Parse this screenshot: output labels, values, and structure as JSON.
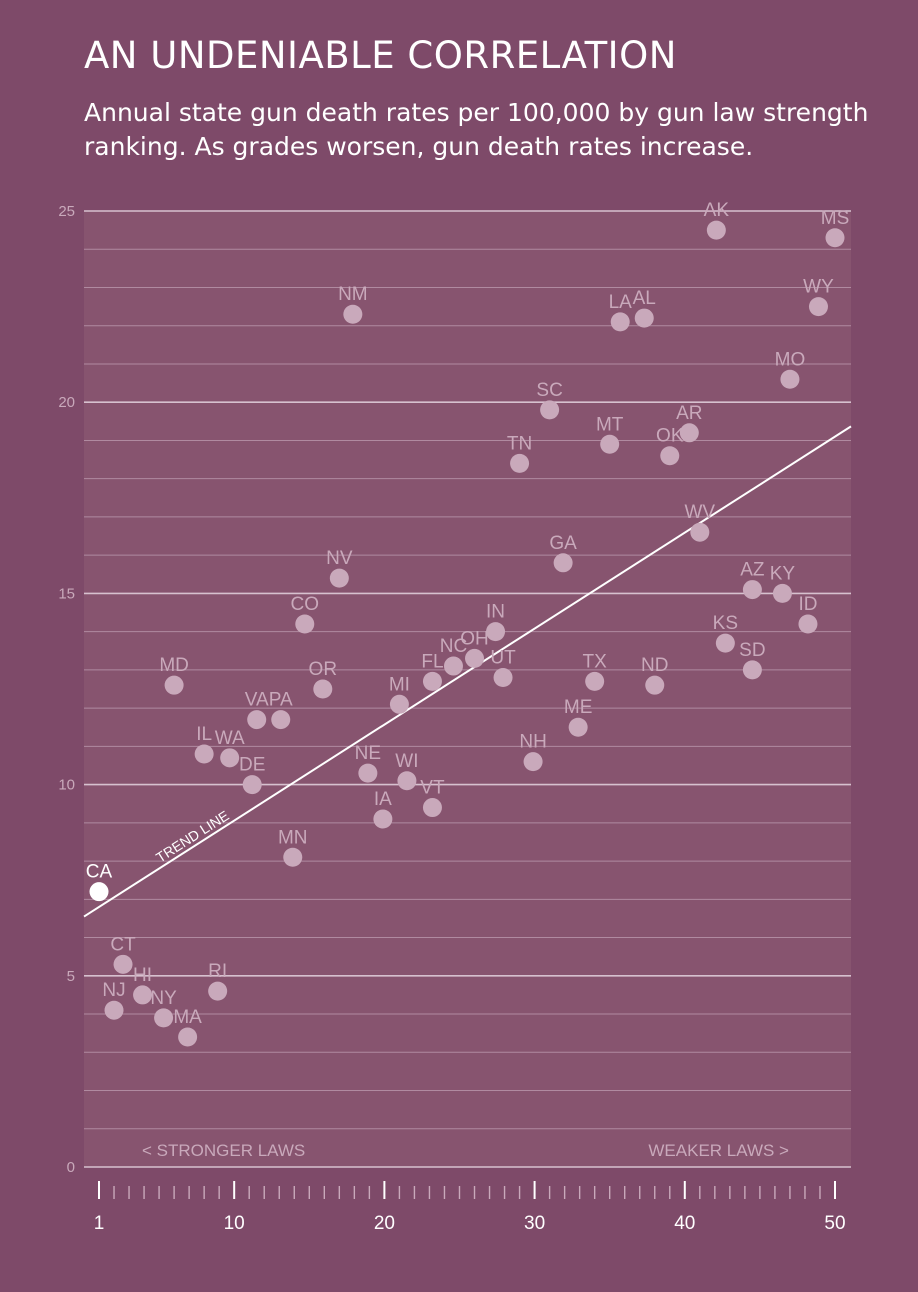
{
  "title": "AN UNDENIABLE CORRELATION",
  "subtitle": "Annual state gun death rates per 100,000 by gun law strength ranking. As grades worsen, gun death rates increase.",
  "colors": {
    "background": "#7e4a69",
    "plot_band": "#87546f",
    "grid": "#b08aa0",
    "major_grid": "#d7c1cf",
    "point": "#c9a9bb",
    "label": "#c9a9bb",
    "highlight": "#ffffff",
    "trend": "#ffffff",
    "axis_text": "#c9a9bb"
  },
  "chart_data": {
    "type": "scatter",
    "title": "AN UNDENIABLE CORRELATION",
    "subtitle": "Annual state gun death rates per 100,000 by gun law strength ranking. As grades worsen, gun death rates increase.",
    "xlabel": "",
    "ylabel": "",
    "xlim": [
      1,
      50
    ],
    "ylim": [
      0,
      25
    ],
    "y_ticks": [
      0,
      5,
      10,
      15,
      20,
      25
    ],
    "x_ticks": [
      1,
      10,
      20,
      30,
      40,
      50
    ],
    "grid": true,
    "annotations": {
      "left": "< STRONGER LAWS",
      "right": "WEAKER LAWS >",
      "trend_label": "TREND LINE"
    },
    "trend_line": {
      "x": [
        1,
        50
      ],
      "y": [
        6.8,
        19.1
      ]
    },
    "highlight": "CA",
    "points": [
      {
        "label": "CA",
        "x": 1,
        "y": 7.2
      },
      {
        "label": "NJ",
        "x": 2,
        "y": 4.1
      },
      {
        "label": "CT",
        "x": 2.6,
        "y": 5.3
      },
      {
        "label": "HI",
        "x": 3.9,
        "y": 4.5
      },
      {
        "label": "NY",
        "x": 5.3,
        "y": 3.9
      },
      {
        "label": "MD",
        "x": 6,
        "y": 12.6
      },
      {
        "label": "MA",
        "x": 6.9,
        "y": 3.4
      },
      {
        "label": "IL",
        "x": 8,
        "y": 10.8
      },
      {
        "label": "RI",
        "x": 8.9,
        "y": 4.6
      },
      {
        "label": "WA",
        "x": 9.7,
        "y": 10.7
      },
      {
        "label": "DE",
        "x": 11.2,
        "y": 10.0
      },
      {
        "label": "VA",
        "x": 11.5,
        "y": 11.7
      },
      {
        "label": "PA",
        "x": 13.1,
        "y": 11.7
      },
      {
        "label": "MN",
        "x": 13.9,
        "y": 8.1
      },
      {
        "label": "CO",
        "x": 14.7,
        "y": 14.2
      },
      {
        "label": "OR",
        "x": 15.9,
        "y": 12.5
      },
      {
        "label": "NV",
        "x": 17,
        "y": 15.4
      },
      {
        "label": "NM",
        "x": 17.9,
        "y": 22.3
      },
      {
        "label": "NE",
        "x": 18.9,
        "y": 10.3
      },
      {
        "label": "IA",
        "x": 19.9,
        "y": 9.1
      },
      {
        "label": "MI",
        "x": 21,
        "y": 12.1
      },
      {
        "label": "WI",
        "x": 21.5,
        "y": 10.1
      },
      {
        "label": "FL",
        "x": 23.2,
        "y": 12.7
      },
      {
        "label": "VT",
        "x": 23.2,
        "y": 9.4
      },
      {
        "label": "NC",
        "x": 24.6,
        "y": 13.1
      },
      {
        "label": "OH",
        "x": 26,
        "y": 13.3
      },
      {
        "label": "IN",
        "x": 27.4,
        "y": 14.0
      },
      {
        "label": "UT",
        "x": 27.9,
        "y": 12.8
      },
      {
        "label": "TN",
        "x": 29,
        "y": 18.4
      },
      {
        "label": "NH",
        "x": 29.9,
        "y": 10.6
      },
      {
        "label": "SC",
        "x": 31,
        "y": 19.8
      },
      {
        "label": "GA",
        "x": 31.9,
        "y": 15.8
      },
      {
        "label": "ME",
        "x": 32.9,
        "y": 11.5
      },
      {
        "label": "TX",
        "x": 34,
        "y": 12.7
      },
      {
        "label": "MT",
        "x": 35,
        "y": 18.9
      },
      {
        "label": "LA",
        "x": 35.7,
        "y": 22.1
      },
      {
        "label": "AL",
        "x": 37.3,
        "y": 22.2
      },
      {
        "label": "ND",
        "x": 38,
        "y": 12.6
      },
      {
        "label": "OK",
        "x": 39,
        "y": 18.6
      },
      {
        "label": "AR",
        "x": 40.3,
        "y": 19.2
      },
      {
        "label": "WV",
        "x": 41,
        "y": 16.6
      },
      {
        "label": "AK",
        "x": 42.1,
        "y": 24.5
      },
      {
        "label": "KS",
        "x": 42.7,
        "y": 13.7
      },
      {
        "label": "AZ",
        "x": 44.5,
        "y": 15.1
      },
      {
        "label": "SD",
        "x": 44.5,
        "y": 13.0
      },
      {
        "label": "KY",
        "x": 46.5,
        "y": 15.0
      },
      {
        "label": "MO",
        "x": 47,
        "y": 20.6
      },
      {
        "label": "ID",
        "x": 48.2,
        "y": 14.2
      },
      {
        "label": "WY",
        "x": 48.9,
        "y": 22.5
      },
      {
        "label": "MS",
        "x": 50,
        "y": 24.3
      }
    ]
  }
}
